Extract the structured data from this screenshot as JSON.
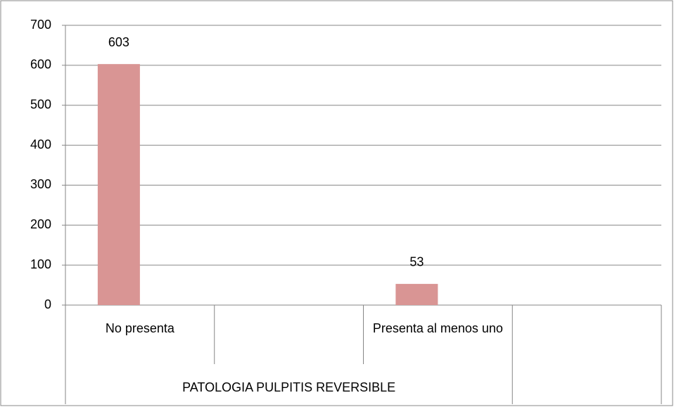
{
  "chart_data": {
    "type": "bar",
    "categories": [
      "No presenta",
      null,
      "Presenta al menos uno",
      null
    ],
    "values": [
      603,
      null,
      53,
      null
    ],
    "value_labels": [
      "603",
      null,
      "53",
      null
    ],
    "color": "#d99594",
    "group_label": "PATOLOGIA PULPITIS REVERSIBLE",
    "ylim": [
      0,
      700
    ],
    "yticks": [
      0,
      100,
      200,
      300,
      400,
      500,
      600,
      700
    ],
    "grid": true
  }
}
